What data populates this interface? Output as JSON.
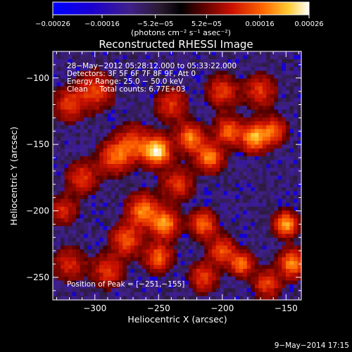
{
  "chart_data": {
    "type": "heatmap",
    "title": "Reconstructed RHESSI Image",
    "xlabel": "Heliocentric X (arcsec)",
    "ylabel": "Heliocentric Y (arcsec)",
    "xlim": [
      -333,
      -138
    ],
    "ylim": [
      -267,
      -80
    ],
    "x_ticks": [
      -300,
      -250,
      -200,
      -150
    ],
    "y_ticks": [
      -100,
      -150,
      -200,
      -250
    ],
    "x_tick_labels": [
      "−300",
      "−250",
      "−200",
      "−150"
    ],
    "y_tick_labels": [
      "−100",
      "−150",
      "−200",
      "−250"
    ],
    "colorbar": {
      "min": -0.00026,
      "max": 0.00026,
      "ticks": [
        -0.00026,
        -0.00016,
        -5.2e-05,
        5.2e-05,
        0.00016,
        0.00026
      ],
      "tick_labels": [
        "−0.00026",
        "−0.00016",
        "−5.2e−05",
        "5.2e−05",
        "0.00016",
        "0.00026"
      ],
      "unit_label": "(photons cm⁻² s⁻¹ asec⁻²)"
    },
    "annotations": {
      "line1": "28−May−2012 05:28:12.000 to 05:33:22.000",
      "line2": "Detectors: 3F 5F 6F 7F 8F 9F, Att 0",
      "line3": "Energy Range: 25.0 − 50.0 keV",
      "line4": "Clean     Total counts: 6.77E+03",
      "peak": "Position of Peak = [−251,−155]"
    },
    "blobs": [
      {
        "x": -251,
        "y": -155,
        "amp": 1.0,
        "sigma": 7
      },
      {
        "x": -270,
        "y": -150,
        "amp": 0.55,
        "sigma": 9
      },
      {
        "x": -285,
        "y": -160,
        "amp": 0.55,
        "sigma": 8
      },
      {
        "x": -240,
        "y": -120,
        "amp": 0.45,
        "sigma": 8
      },
      {
        "x": -300,
        "y": -110,
        "amp": 0.5,
        "sigma": 9
      },
      {
        "x": -320,
        "y": -120,
        "amp": 0.45,
        "sigma": 8
      },
      {
        "x": -310,
        "y": -175,
        "amp": 0.45,
        "sigma": 8
      },
      {
        "x": -325,
        "y": -200,
        "amp": 0.4,
        "sigma": 7
      },
      {
        "x": -262,
        "y": -200,
        "amp": 0.7,
        "sigma": 8
      },
      {
        "x": -245,
        "y": -210,
        "amp": 0.75,
        "sigma": 7
      },
      {
        "x": -275,
        "y": -222,
        "amp": 0.55,
        "sigma": 8
      },
      {
        "x": -250,
        "y": -235,
        "amp": 0.6,
        "sigma": 7
      },
      {
        "x": -290,
        "y": -245,
        "amp": 0.45,
        "sigma": 8
      },
      {
        "x": -320,
        "y": -240,
        "amp": 0.4,
        "sigma": 8
      },
      {
        "x": -225,
        "y": -145,
        "amp": 0.7,
        "sigma": 7
      },
      {
        "x": -210,
        "y": -160,
        "amp": 0.7,
        "sigma": 7
      },
      {
        "x": -195,
        "y": -140,
        "amp": 0.6,
        "sigma": 7
      },
      {
        "x": -175,
        "y": -145,
        "amp": 0.8,
        "sigma": 7
      },
      {
        "x": -160,
        "y": -140,
        "amp": 0.55,
        "sigma": 7
      },
      {
        "x": -200,
        "y": -110,
        "amp": 0.45,
        "sigma": 8
      },
      {
        "x": -170,
        "y": -110,
        "amp": 0.45,
        "sigma": 8
      },
      {
        "x": -215,
        "y": -210,
        "amp": 0.6,
        "sigma": 7
      },
      {
        "x": -200,
        "y": -230,
        "amp": 0.55,
        "sigma": 7
      },
      {
        "x": -185,
        "y": -240,
        "amp": 0.65,
        "sigma": 6
      },
      {
        "x": -215,
        "y": -250,
        "amp": 0.5,
        "sigma": 7
      },
      {
        "x": -150,
        "y": -210,
        "amp": 0.8,
        "sigma": 6
      },
      {
        "x": -145,
        "y": -240,
        "amp": 0.7,
        "sigma": 7
      },
      {
        "x": -165,
        "y": -255,
        "amp": 0.5,
        "sigma": 7
      },
      {
        "x": -235,
        "y": -180,
        "amp": 0.45,
        "sigma": 8
      }
    ]
  },
  "footer": {
    "date": "9−May−2014 17:15"
  }
}
